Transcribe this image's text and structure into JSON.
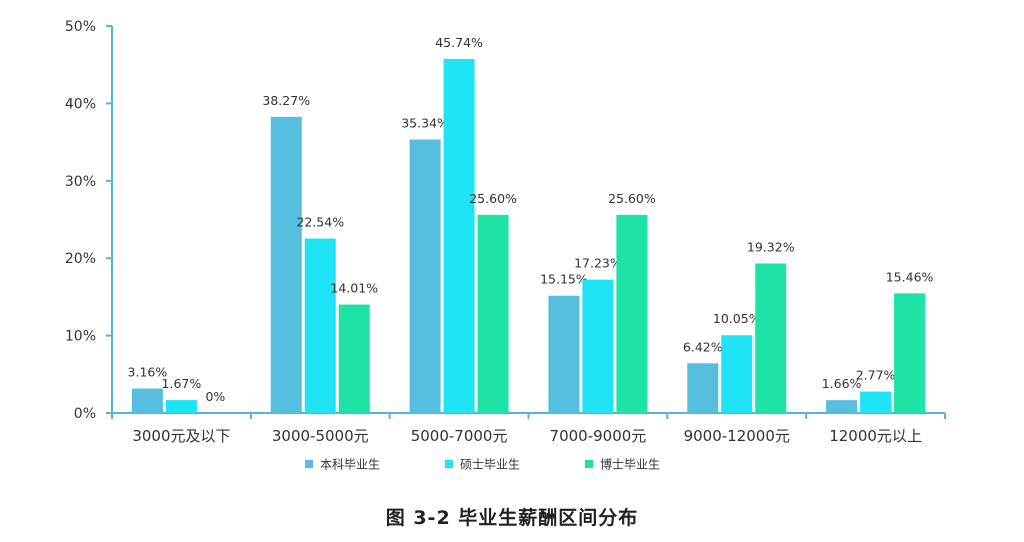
{
  "figure_caption": "图 3-2   毕业生薪酬区间分布",
  "colors": {
    "axis": "#5ab4d8",
    "series": [
      "#56bfe0",
      "#1fe4f5",
      "#1de3a6"
    ]
  },
  "chart_data": {
    "type": "bar",
    "categories": [
      "3000元及以下",
      "3000-5000元",
      "5000-7000元",
      "7000-9000元",
      "9000-12000元",
      "12000元以上"
    ],
    "series": [
      {
        "name": "本科毕业生",
        "values": [
          3.16,
          38.27,
          35.34,
          15.15,
          6.42,
          1.66
        ],
        "labels": [
          "3.16%",
          "38.27%",
          "35.34%",
          "15.15%",
          "6.42%",
          "1.66%"
        ]
      },
      {
        "name": "硕士毕业生",
        "values": [
          1.67,
          22.54,
          45.74,
          17.23,
          10.05,
          2.77
        ],
        "labels": [
          "1.67%",
          "22.54%",
          "45.74%",
          "17.23%",
          "10.05%",
          "2.77%"
        ]
      },
      {
        "name": "博士毕业生",
        "values": [
          0,
          14.01,
          25.6,
          25.6,
          19.32,
          15.46
        ],
        "labels": [
          "0%",
          "14.01%",
          "25.60%",
          "25.60%",
          "19.32%",
          "15.46%"
        ]
      }
    ],
    "y_ticks": [
      "0%",
      "10%",
      "20%",
      "30%",
      "40%",
      "50%"
    ],
    "ylim": [
      0,
      50
    ],
    "grid": false,
    "legend_position": "bottom"
  }
}
